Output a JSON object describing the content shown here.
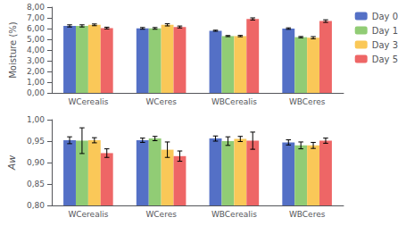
{
  "chart_data": [
    {
      "type": "bar",
      "ylabel": "Moisture (%)",
      "categories": [
        "WCerealis",
        "WCeres",
        "WBCerealis",
        "WBCeres"
      ],
      "series": [
        {
          "name": "Day 0",
          "values": [
            6.25,
            6.02,
            5.8,
            6.0
          ],
          "errors": [
            0.1,
            0.08,
            0.05,
            0.07
          ]
        },
        {
          "name": "Day 1",
          "values": [
            6.25,
            6.02,
            5.3,
            5.2
          ],
          "errors": [
            0.1,
            0.08,
            0.05,
            0.06
          ]
        },
        {
          "name": "Day 3",
          "values": [
            6.35,
            6.35,
            5.3,
            5.15
          ],
          "errors": [
            0.08,
            0.1,
            0.06,
            0.1
          ]
        },
        {
          "name": "Day 5",
          "values": [
            6.05,
            6.15,
            6.9,
            6.7
          ],
          "errors": [
            0.08,
            0.09,
            0.1,
            0.12
          ]
        }
      ],
      "ylim": [
        0.0,
        8.0
      ],
      "yticks": [
        {
          "value": 0.0,
          "label": "0,00"
        },
        {
          "value": 1.0,
          "label": "1,00"
        },
        {
          "value": 2.0,
          "label": "2,00"
        },
        {
          "value": 3.0,
          "label": "3,00"
        },
        {
          "value": 4.0,
          "label": "4,00"
        },
        {
          "value": 5.0,
          "label": "5,00"
        },
        {
          "value": 6.0,
          "label": "6,00"
        },
        {
          "value": 7.0,
          "label": "7,00"
        },
        {
          "value": 8.0,
          "label": "8,00"
        }
      ],
      "grid": false,
      "legend": "upper right"
    },
    {
      "type": "bar",
      "ylabel": "Aw",
      "categories": [
        "WCerealis",
        "WCeres",
        "WBCerealis",
        "WBCeres"
      ],
      "series": [
        {
          "name": "Day 0",
          "values": [
            0.952,
            0.952,
            0.956,
            0.947
          ],
          "errors": [
            0.008,
            0.005,
            0.006,
            0.006
          ]
        },
        {
          "name": "Day 1",
          "values": [
            0.951,
            0.956,
            0.95,
            0.94
          ],
          "errors": [
            0.03,
            0.005,
            0.01,
            0.008
          ]
        },
        {
          "name": "Day 3",
          "values": [
            0.952,
            0.93,
            0.955,
            0.94
          ],
          "errors": [
            0.006,
            0.018,
            0.006,
            0.007
          ]
        },
        {
          "name": "Day 5",
          "values": [
            0.922,
            0.915,
            0.951,
            0.951
          ],
          "errors": [
            0.01,
            0.012,
            0.02,
            0.006
          ]
        }
      ],
      "ylim": [
        0.8,
        1.0
      ],
      "yticks": [
        {
          "value": 0.8,
          "label": "0,80"
        },
        {
          "value": 0.85,
          "label": "0,85"
        },
        {
          "value": 0.9,
          "label": "0,90"
        },
        {
          "value": 0.95,
          "label": "0,95"
        },
        {
          "value": 1.0,
          "label": "1,00"
        }
      ],
      "grid": false
    }
  ]
}
